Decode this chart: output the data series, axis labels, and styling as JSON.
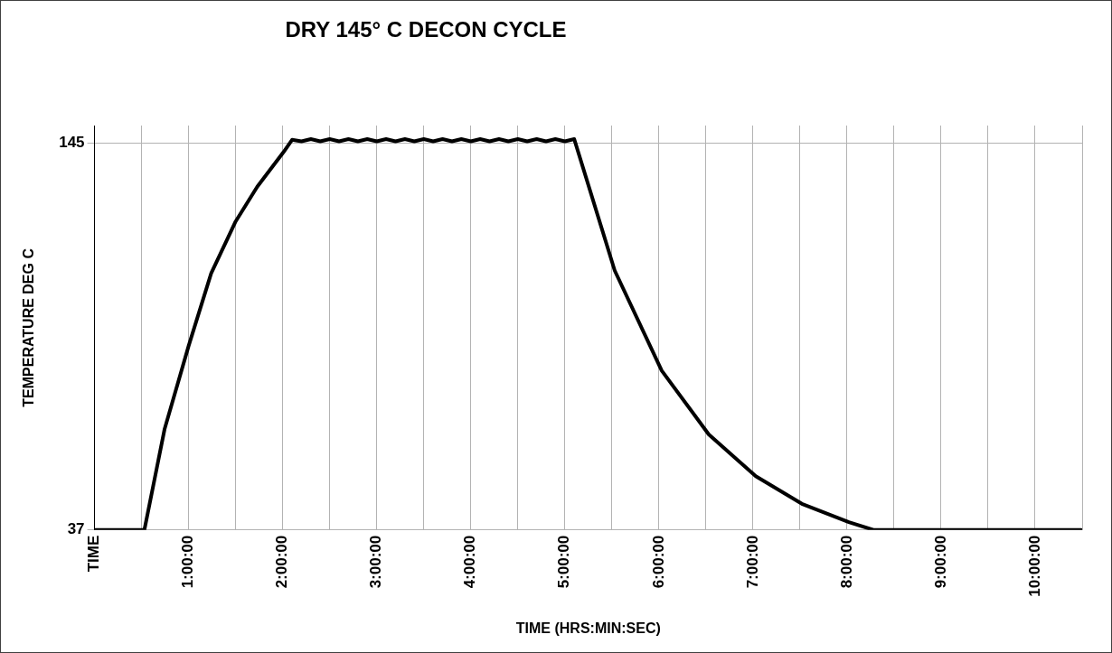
{
  "chart_data": {
    "type": "line",
    "title": "DRY 145° C DECON CYCLE",
    "xlabel": "TIME (HRS:MIN:SEC)",
    "ylabel": "TEMPERATURE DEG C",
    "xlim": [
      0,
      10.5
    ],
    "xticks": [
      {
        "value": 0,
        "label": "TIME"
      },
      {
        "value": 0.5,
        "label": null
      },
      {
        "value": 1,
        "label": "1:00:00"
      },
      {
        "value": 1.5,
        "label": null
      },
      {
        "value": 2,
        "label": "2:00:00"
      },
      {
        "value": 2.5,
        "label": null
      },
      {
        "value": 3,
        "label": "3:00:00"
      },
      {
        "value": 3.5,
        "label": null
      },
      {
        "value": 4,
        "label": "4:00:00"
      },
      {
        "value": 4.5,
        "label": null
      },
      {
        "value": 5,
        "label": "5:00:00"
      },
      {
        "value": 5.5,
        "label": null
      },
      {
        "value": 6,
        "label": "6:00:00"
      },
      {
        "value": 6.5,
        "label": null
      },
      {
        "value": 7,
        "label": "7:00:00"
      },
      {
        "value": 7.5,
        "label": null
      },
      {
        "value": 8,
        "label": "8:00:00"
      },
      {
        "value": 8.5,
        "label": null
      },
      {
        "value": 9,
        "label": "9:00:00"
      },
      {
        "value": 9.5,
        "label": null
      },
      {
        "value": 10,
        "label": "10:00:00"
      },
      {
        "value": 10.5,
        "label": null
      }
    ],
    "ylim": [
      37,
      150
    ],
    "yticks": [
      37,
      145
    ],
    "grid": true,
    "legend": false,
    "marker": "none",
    "line_style": "solid",
    "series": [
      {
        "color": "#000000",
        "x": [
          0,
          0.53,
          0.745,
          1.0,
          1.24,
          1.5,
          1.73,
          2.01,
          2.1,
          2.2,
          2.3,
          2.4,
          2.5,
          2.6,
          2.7,
          2.8,
          2.9,
          3.0,
          3.1,
          3.2,
          3.3,
          3.4,
          3.5,
          3.6,
          3.7,
          3.8,
          3.9,
          4.0,
          4.1,
          4.2,
          4.3,
          4.4,
          4.5,
          4.6,
          4.7,
          4.8,
          4.9,
          5.0,
          5.1,
          5.53,
          6.03,
          6.53,
          7.03,
          7.52,
          8.02,
          8.28,
          10.49
        ],
        "values": [
          37,
          37,
          65.2,
          88.4,
          108.7,
          123.2,
          132.9,
          142.6,
          146,
          145.6,
          146.2,
          145.6,
          146.2,
          145.6,
          146.2,
          145.6,
          146.2,
          145.6,
          146.2,
          145.6,
          146.2,
          145.6,
          146.2,
          145.6,
          146.2,
          145.6,
          146.2,
          145.6,
          146.2,
          145.6,
          146.2,
          145.6,
          146.2,
          145.6,
          146.2,
          145.6,
          146.2,
          145.6,
          146.2,
          109.5,
          81.5,
          63.7,
          52,
          44.3,
          39.2,
          37,
          37
        ]
      }
    ]
  }
}
